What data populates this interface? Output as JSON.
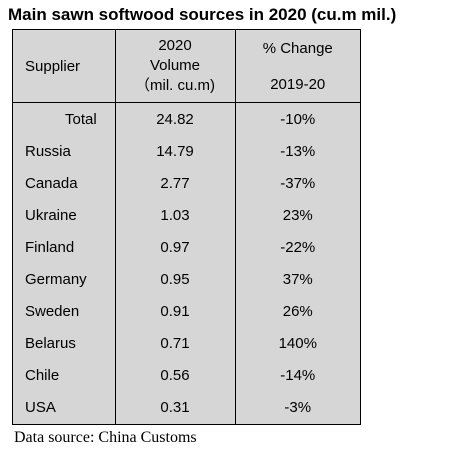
{
  "title": "Main sawn softwood sources in 2020 (cu.m mil.)",
  "table": {
    "headers": {
      "supplier": "Supplier",
      "volume_line1": "2020",
      "volume_line2": "Volume",
      "volume_line3": "（mil. cu.m)",
      "change_line1": "% Change",
      "change_line2": "2019-20"
    },
    "rows": [
      {
        "supplier": "Total",
        "volume": "24.82",
        "change": "-10%"
      },
      {
        "supplier": "Russia",
        "volume": "14.79",
        "change": "-13%"
      },
      {
        "supplier": "Canada",
        "volume": "2.77",
        "change": "-37%"
      },
      {
        "supplier": "Ukraine",
        "volume": "1.03",
        "change": "23%"
      },
      {
        "supplier": "Finland",
        "volume": "0.97",
        "change": "-22%"
      },
      {
        "supplier": "Germany",
        "volume": "0.95",
        "change": "37%"
      },
      {
        "supplier": "Sweden",
        "volume": "0.91",
        "change": "26%"
      },
      {
        "supplier": "Belarus",
        "volume": "0.71",
        "change": "140%"
      },
      {
        "supplier": "Chile",
        "volume": "0.56",
        "change": "-14%"
      },
      {
        "supplier": "USA",
        "volume": "0.31",
        "change": "-3%"
      }
    ]
  },
  "source": "Data source: China Customs",
  "colors": {
    "table_background": "#d6d6d6",
    "border": "#000000"
  }
}
